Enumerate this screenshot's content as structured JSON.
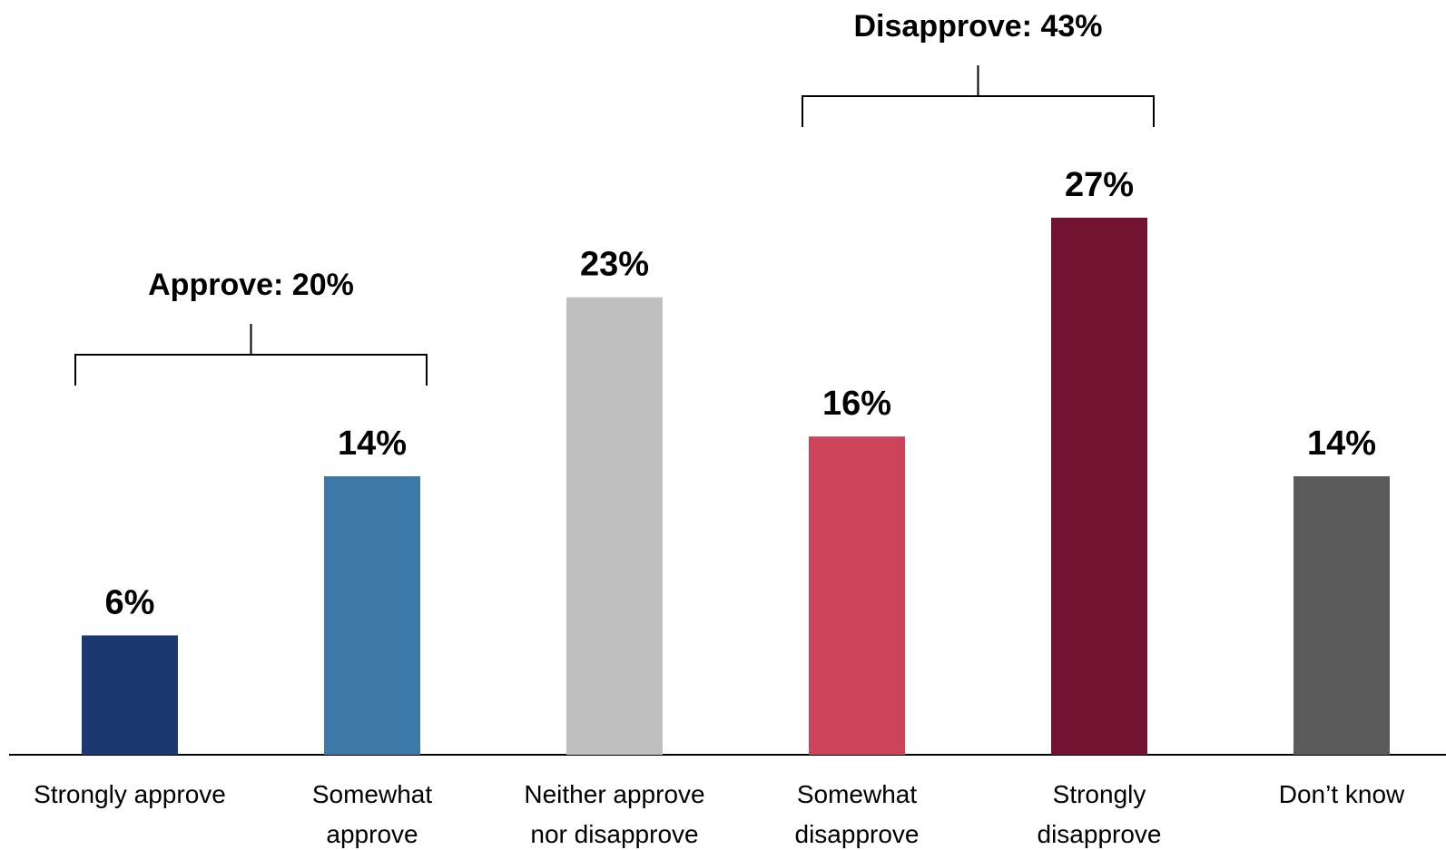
{
  "chart_data": {
    "type": "bar",
    "categories": [
      [
        "Strongly approve"
      ],
      [
        "Somewhat",
        "approve"
      ],
      [
        "Neither approve",
        "nor disapprove"
      ],
      [
        "Somewhat",
        "disapprove"
      ],
      [
        "Strongly",
        "disapprove"
      ],
      [
        "Don’t know"
      ]
    ],
    "values": [
      6,
      14,
      23,
      16,
      27,
      14
    ],
    "value_labels": [
      "6%",
      "14%",
      "23%",
      "16%",
      "27%",
      "14%"
    ],
    "colors": [
      "#1b3870",
      "#3b7aa8",
      "#bfbfbf",
      "#cc435a",
      "#711330",
      "#5a5a5a"
    ],
    "ylim": [
      0,
      30
    ],
    "grid": false,
    "title": "",
    "xlabel": "",
    "ylabel": "",
    "groups": [
      {
        "label": "Approve: 20%",
        "from": 0,
        "to": 1
      },
      {
        "label": "Disapprove: 43%",
        "from": 3,
        "to": 4
      }
    ]
  }
}
